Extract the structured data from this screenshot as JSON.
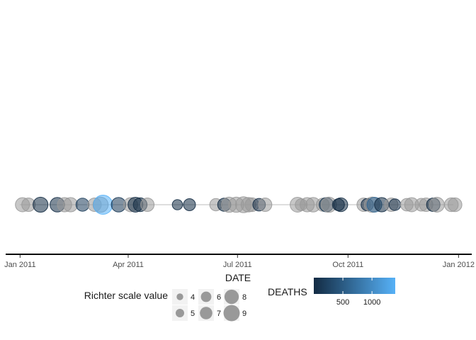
{
  "chart_data": {
    "type": "scatter",
    "title": "",
    "xlabel": "DATE",
    "ylabel": "",
    "xlim": [
      "2010-12-20",
      "2012-01-12"
    ],
    "x_ticks": [
      "2011-01-01",
      "2011-04-01",
      "2011-07-01",
      "2011-10-01",
      "2012-01-01"
    ],
    "x_tick_labels": [
      "Jan 2011",
      "Apr 2011",
      "Jul 2011",
      "Oct 2011",
      "Jan 2012"
    ],
    "grid": false,
    "legend_position": "bottom",
    "size_legend": {
      "title": "Richter scale value",
      "values": [
        4,
        5,
        6,
        7,
        8,
        9
      ]
    },
    "color_legend": {
      "title": "DEATHS",
      "breaks": [
        500,
        1000
      ],
      "break_labels": [
        "500",
        "1000"
      ],
      "range": [
        0,
        1400
      ],
      "low_color": "#132b43",
      "high_color": "#56b1f7",
      "na_color": "#999999"
    },
    "points": [
      {
        "date": "2011-01-03",
        "magnitude": 6.8,
        "deaths": null
      },
      {
        "date": "2011-01-08",
        "magnitude": 6.5,
        "deaths": null
      },
      {
        "date": "2011-01-18",
        "magnitude": 7.2,
        "deaths": 3
      },
      {
        "date": "2011-02-01",
        "magnitude": 7.0,
        "deaths": 20
      },
      {
        "date": "2011-02-07",
        "magnitude": 6.9,
        "deaths": null
      },
      {
        "date": "2011-02-12",
        "magnitude": 6.9,
        "deaths": null
      },
      {
        "date": "2011-02-22",
        "magnitude": 6.3,
        "deaths": 185
      },
      {
        "date": "2011-03-04",
        "magnitude": 6.5,
        "deaths": null
      },
      {
        "date": "2011-03-09",
        "magnitude": 7.3,
        "deaths": null
      },
      {
        "date": "2011-03-11",
        "magnitude": 9.0,
        "deaths": 1400
      },
      {
        "date": "2011-03-24",
        "magnitude": 7.0,
        "deaths": 150
      },
      {
        "date": "2011-04-03",
        "magnitude": 6.8,
        "deaths": null
      },
      {
        "date": "2011-04-07",
        "magnitude": 7.1,
        "deaths": 4
      },
      {
        "date": "2011-04-11",
        "magnitude": 6.6,
        "deaths": 6
      },
      {
        "date": "2011-04-17",
        "magnitude": 6.5,
        "deaths": null
      },
      {
        "date": "2011-05-12",
        "magnitude": 5.1,
        "deaths": 9
      },
      {
        "date": "2011-05-22",
        "magnitude": 5.9,
        "deaths": 2
      },
      {
        "date": "2011-06-13",
        "magnitude": 6.0,
        "deaths": null
      },
      {
        "date": "2011-06-20",
        "magnitude": 6.4,
        "deaths": 2
      },
      {
        "date": "2011-06-24",
        "magnitude": 7.3,
        "deaths": null
      },
      {
        "date": "2011-06-30",
        "magnitude": 7.3,
        "deaths": null
      },
      {
        "date": "2011-07-06",
        "magnitude": 7.6,
        "deaths": null
      },
      {
        "date": "2011-07-10",
        "magnitude": 7.0,
        "deaths": null
      },
      {
        "date": "2011-07-13",
        "magnitude": 6.6,
        "deaths": null
      },
      {
        "date": "2011-07-19",
        "magnitude": 6.1,
        "deaths": 14
      },
      {
        "date": "2011-07-24",
        "magnitude": 6.5,
        "deaths": null
      },
      {
        "date": "2011-08-20",
        "magnitude": 7.1,
        "deaths": null
      },
      {
        "date": "2011-08-23",
        "magnitude": 5.8,
        "deaths": null
      },
      {
        "date": "2011-08-28",
        "magnitude": 6.9,
        "deaths": null
      },
      {
        "date": "2011-09-02",
        "magnitude": 7.0,
        "deaths": null
      },
      {
        "date": "2011-09-10",
        "magnitude": 6.4,
        "deaths": null
      },
      {
        "date": "2011-09-13",
        "magnitude": 6.9,
        "deaths": 111
      },
      {
        "date": "2011-09-15",
        "magnitude": 7.3,
        "deaths": null
      },
      {
        "date": "2011-09-23",
        "magnitude": 5.9,
        "deaths": 2
      },
      {
        "date": "2011-09-25",
        "magnitude": 6.7,
        "deaths": 1
      },
      {
        "date": "2011-10-14",
        "magnitude": 6.5,
        "deaths": null
      },
      {
        "date": "2011-10-17",
        "magnitude": 6.0,
        "deaths": 14
      },
      {
        "date": "2011-10-21",
        "magnitude": 7.4,
        "deaths": null
      },
      {
        "date": "2011-10-23",
        "magnitude": 7.1,
        "deaths": 604
      },
      {
        "date": "2011-10-29",
        "magnitude": 6.9,
        "deaths": 2
      },
      {
        "date": "2011-11-06",
        "magnitude": 6.5,
        "deaths": null
      },
      {
        "date": "2011-11-09",
        "magnitude": 5.7,
        "deaths": 40
      },
      {
        "date": "2011-11-19",
        "magnitude": 6.1,
        "deaths": null
      },
      {
        "date": "2011-11-23",
        "magnitude": 6.8,
        "deaths": null
      },
      {
        "date": "2011-12-01",
        "magnitude": 6.2,
        "deaths": null
      },
      {
        "date": "2011-12-05",
        "magnitude": 6.5,
        "deaths": null
      },
      {
        "date": "2011-12-11",
        "magnitude": 6.5,
        "deaths": 2
      },
      {
        "date": "2011-12-14",
        "magnitude": 7.1,
        "deaths": null
      },
      {
        "date": "2011-12-26",
        "magnitude": 6.6,
        "deaths": null
      },
      {
        "date": "2011-12-29",
        "magnitude": 6.7,
        "deaths": null
      }
    ]
  }
}
